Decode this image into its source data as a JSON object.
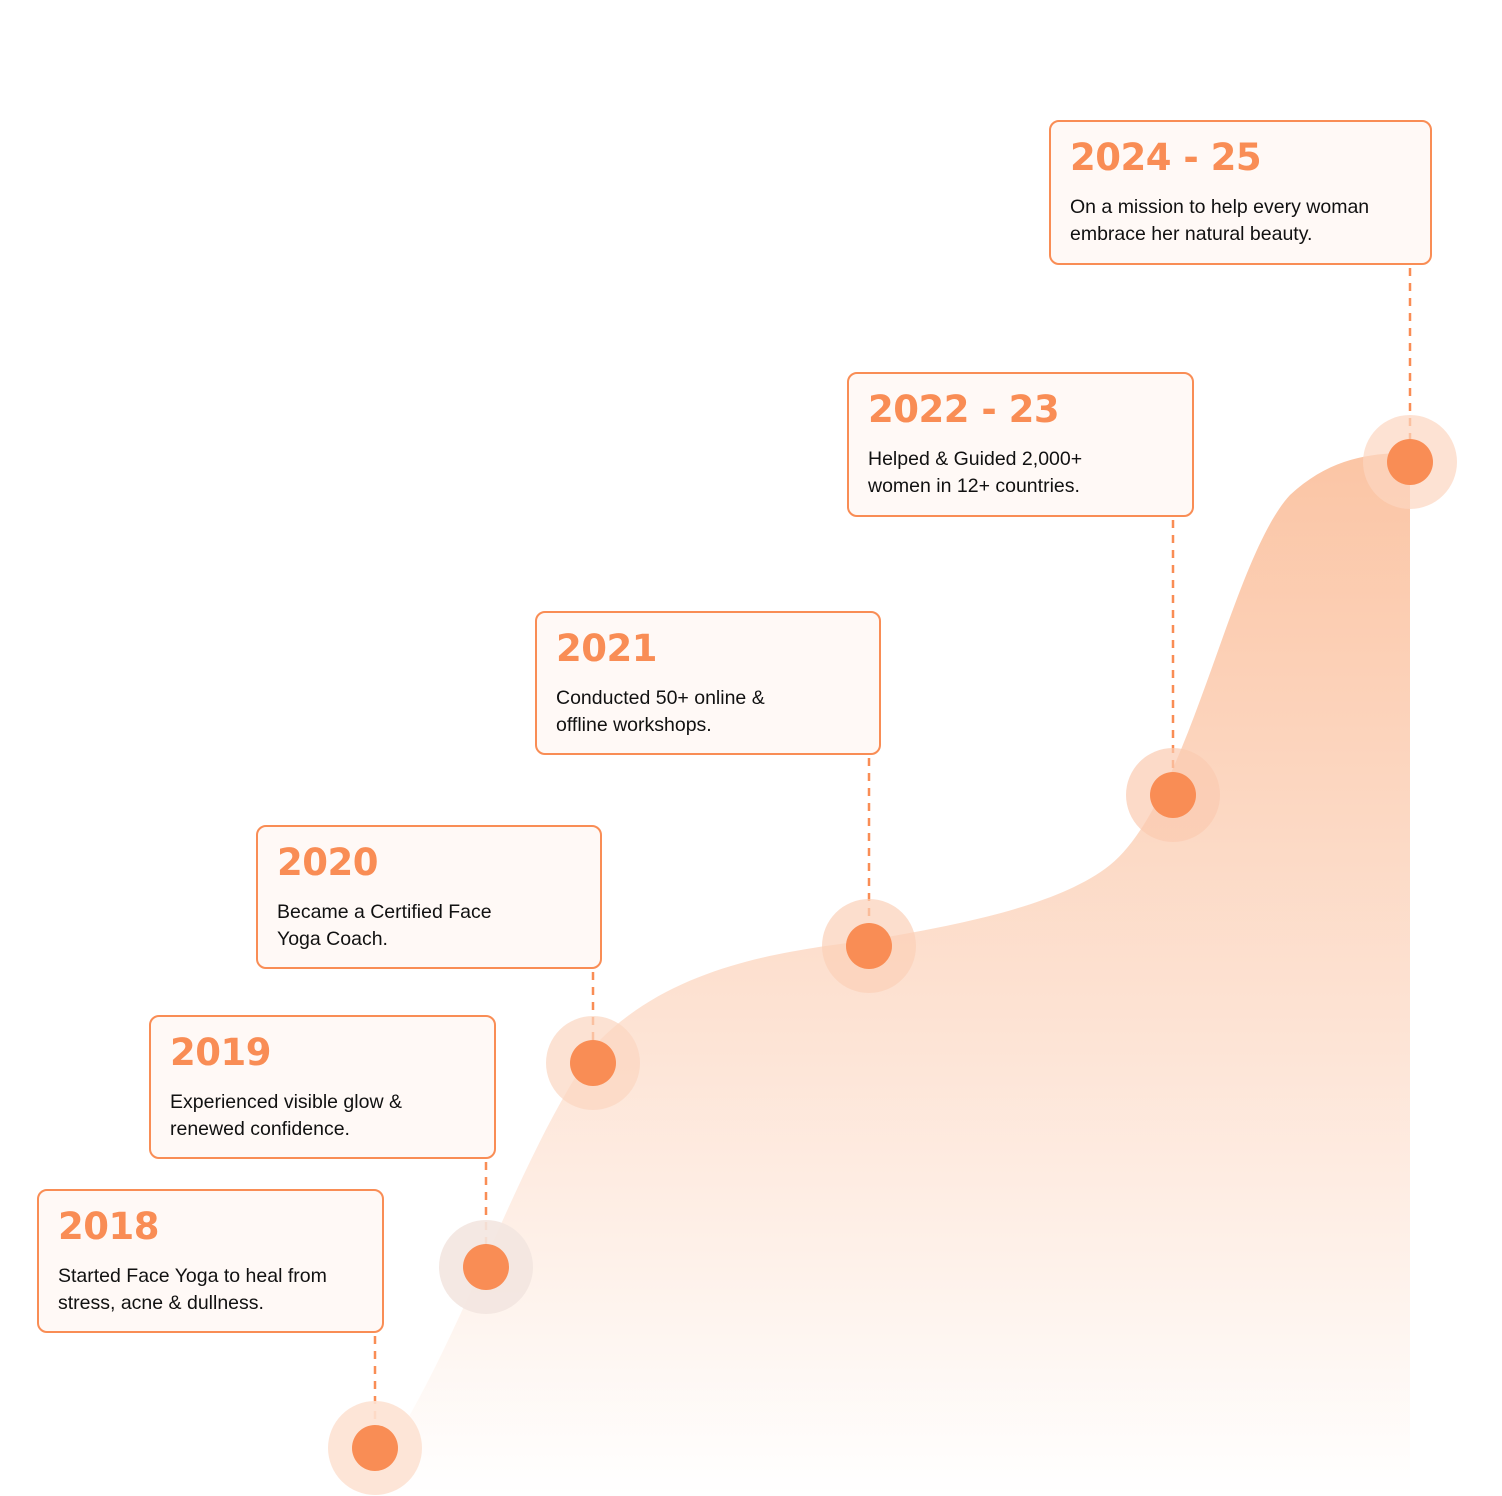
{
  "colors": {
    "accent": "#f98d55",
    "area_top": "#fbc5a5",
    "halo": "#fde2d3",
    "card_bg": "#fff9f6"
  },
  "milestones": [
    {
      "year": "2018",
      "text": "Started Face Yoga to heal from stress, acne & dullness."
    },
    {
      "year": "2019",
      "text": "Experienced visible glow & renewed confidence."
    },
    {
      "year": "2020",
      "text": "Became a Certified Face Yoga Coach."
    },
    {
      "year": "2021",
      "text": "Conducted 50+ online & offline workshops."
    },
    {
      "year": "2022 - 23",
      "text": "Helped & Guided 2,000+ women in 12+ countries."
    },
    {
      "year": "2024 - 25",
      "text": "On a mission to help every woman embrace her natural beauty."
    }
  ]
}
